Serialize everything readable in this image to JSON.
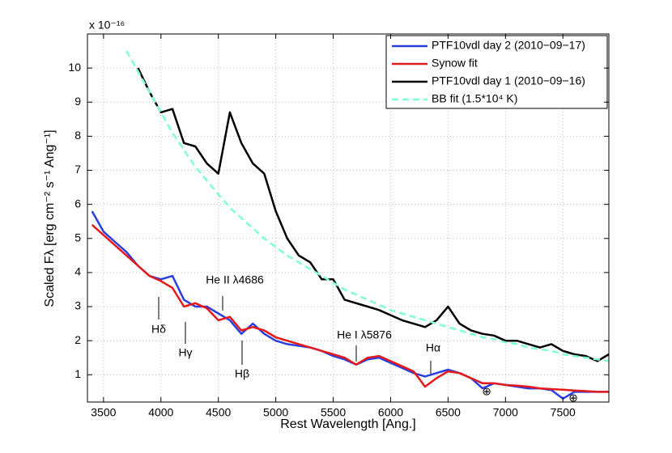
{
  "chart_data": {
    "type": "line",
    "xlabel": "Rest Wavelength [Ang.]",
    "ylabel": "Scaled Fλ [erg cm⁻² s⁻¹ Ang⁻¹]",
    "yscale_label": "x 10⁻¹⁶",
    "x": [
      3400,
      3500,
      3600,
      3700,
      3800,
      3900,
      4000,
      4100,
      4200,
      4300,
      4400,
      4500,
      4600,
      4700,
      4800,
      4900,
      5000,
      5100,
      5200,
      5300,
      5400,
      5500,
      5600,
      5700,
      5800,
      5900,
      6000,
      6100,
      6200,
      6300,
      6400,
      6500,
      6600,
      6700,
      6800,
      6900,
      7000,
      7100,
      7200,
      7300,
      7400,
      7500,
      7600,
      7700,
      7800,
      7900
    ],
    "xlim": [
      3360,
      7900
    ],
    "ylim": [
      0.2,
      11
    ],
    "xticks": [
      3500,
      4000,
      4500,
      5000,
      5500,
      6000,
      6500,
      7000,
      7500
    ],
    "yticks": [
      1,
      2,
      3,
      4,
      5,
      6,
      7,
      8,
      9,
      10
    ],
    "grid": true,
    "legend": "top-right",
    "series": [
      {
        "name": "PTF10vdl day 2 (2010−09−17)",
        "color": "#2b3fe0",
        "values": [
          5.8,
          5.2,
          4.9,
          4.6,
          4.2,
          3.9,
          3.8,
          3.9,
          3.2,
          3.0,
          3.0,
          2.8,
          2.6,
          2.2,
          2.5,
          2.2,
          2.0,
          1.9,
          1.85,
          1.8,
          1.7,
          1.55,
          1.45,
          1.3,
          1.45,
          1.5,
          1.35,
          1.2,
          1.05,
          0.95,
          1.05,
          1.15,
          1.05,
          0.9,
          0.6,
          0.75,
          0.7,
          0.65,
          0.6,
          0.6,
          0.55,
          0.3,
          0.5,
          0.5,
          0.5,
          0.5
        ]
      },
      {
        "name": "Synow fit",
        "color": "#e41a1a",
        "values": [
          5.4,
          5.1,
          4.8,
          4.5,
          4.2,
          3.9,
          3.75,
          3.55,
          3.0,
          3.1,
          2.95,
          2.6,
          2.7,
          2.3,
          2.4,
          2.3,
          2.1,
          2.0,
          1.9,
          1.8,
          1.7,
          1.6,
          1.5,
          1.3,
          1.5,
          1.55,
          1.4,
          1.25,
          1.1,
          0.65,
          0.9,
          1.1,
          1.05,
          0.9,
          0.75,
          0.75,
          0.7,
          0.68,
          0.65,
          0.6,
          0.58,
          0.56,
          0.54,
          0.52,
          0.5,
          0.5
        ]
      },
      {
        "name": "PTF10vdl day 1 (2010−09−16)",
        "color": "#000000",
        "values": [
          null,
          null,
          null,
          null,
          10.0,
          9.3,
          8.7,
          8.8,
          7.8,
          7.7,
          7.2,
          6.9,
          8.7,
          7.8,
          7.2,
          6.9,
          5.8,
          5.0,
          4.5,
          4.3,
          3.8,
          3.8,
          3.2,
          3.1,
          3.0,
          2.9,
          2.75,
          2.6,
          2.5,
          2.4,
          2.6,
          3.0,
          2.5,
          2.3,
          2.2,
          2.15,
          2.0,
          2.0,
          1.9,
          1.8,
          1.9,
          1.7,
          1.6,
          1.55,
          1.4,
          1.6
        ]
      },
      {
        "name": "BB fit (1.5*10⁴ K)",
        "color": "#7fffd4",
        "dashed": true,
        "values": [
          null,
          null,
          null,
          10.5,
          9.9,
          9.3,
          8.7,
          8.1,
          7.6,
          7.1,
          6.7,
          6.3,
          5.9,
          5.6,
          5.3,
          5.0,
          4.75,
          4.5,
          4.3,
          4.1,
          3.9,
          3.7,
          3.5,
          3.35,
          3.2,
          3.05,
          2.9,
          2.8,
          2.7,
          2.6,
          2.5,
          2.4,
          2.3,
          2.2,
          2.1,
          2.05,
          1.95,
          1.9,
          1.8,
          1.75,
          1.7,
          1.6,
          1.55,
          1.5,
          1.45,
          1.4
        ]
      }
    ],
    "annotations": [
      "Hδ",
      "Hγ",
      "He II λ4686",
      "Hβ",
      "He I λ5876",
      "Hα",
      "⊕",
      "⊕"
    ]
  }
}
